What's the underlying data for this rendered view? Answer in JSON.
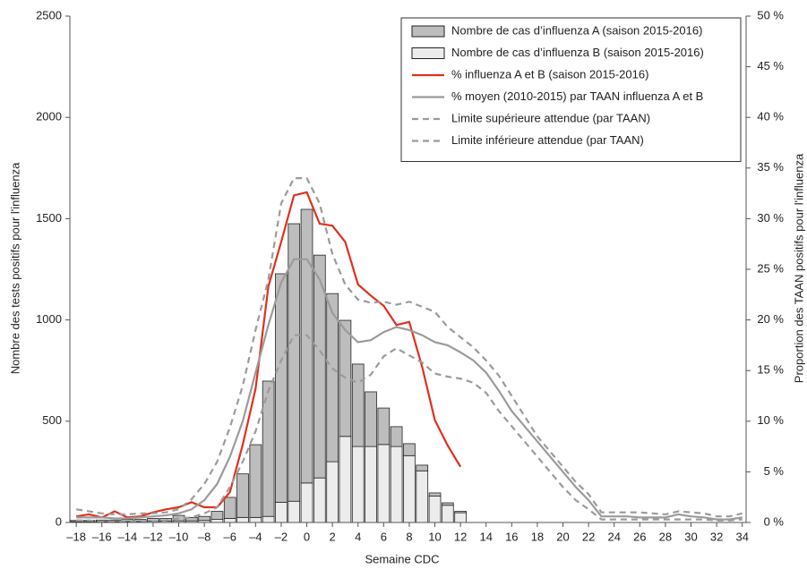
{
  "chart_data": {
    "type": "bar",
    "xlabel": "Semaine CDC",
    "ylabel": "Nombre  des tests positifs pour l'influenza",
    "y2label": "Proportion des TAAN positifs pour l'influenza",
    "x": [
      -18,
      -17,
      -16,
      -15,
      -14,
      -13,
      -12,
      -11,
      -10,
      -9,
      -8,
      -7,
      -6,
      -5,
      -4,
      -3,
      -2,
      -1,
      0,
      1,
      2,
      3,
      4,
      5,
      6,
      7,
      8,
      9,
      10,
      11,
      12,
      13,
      14,
      15,
      16,
      17,
      18,
      19,
      20,
      21,
      22,
      23,
      24,
      25,
      26,
      27,
      28,
      29,
      30,
      31,
      32,
      33,
      34
    ],
    "xlim": [
      -18.5,
      34.3
    ],
    "xticks": [
      {
        "value": -18,
        "label": "–18"
      },
      {
        "value": -16,
        "label": "–16"
      },
      {
        "value": -14,
        "label": "–14"
      },
      {
        "value": -12,
        "label": "–12"
      },
      {
        "value": -10,
        "label": "–10"
      },
      {
        "value": -8,
        "label": "–8"
      },
      {
        "value": -6,
        "label": "–6"
      },
      {
        "value": -4,
        "label": "–4"
      },
      {
        "value": -2,
        "label": "–2"
      },
      0,
      2,
      4,
      6,
      8,
      10,
      12,
      14,
      16,
      18,
      20,
      22,
      24,
      26,
      28,
      30,
      32,
      34
    ],
    "ylim": [
      0,
      2500
    ],
    "yticks": [
      0,
      500,
      1000,
      1500,
      2000,
      2500
    ],
    "y2lim": [
      0,
      50
    ],
    "y2ticks": [
      {
        "value": 0,
        "label": "0 %"
      },
      {
        "value": 5,
        "label": "5 %"
      },
      {
        "value": 10,
        "label": "10 %"
      },
      {
        "value": 15,
        "label": "15 %"
      },
      {
        "value": 20,
        "label": "20 %"
      },
      {
        "value": 25,
        "label": "25 %"
      },
      {
        "value": 30,
        "label": "30 %"
      },
      {
        "value": 35,
        "label": "35 %"
      },
      {
        "value": 40,
        "label": "40 %"
      },
      {
        "value": 45,
        "label": "45 %"
      },
      {
        "value": 50,
        "label": "50 %"
      }
    ],
    "legend": "top-right",
    "series": [
      {
        "name": "Nombre de cas d’influenza A (saison 2015-2016)",
        "type": "bar",
        "color": "#bdbdbd",
        "values": [
          6,
          6,
          8,
          8,
          10,
          10,
          14,
          14,
          27,
          17,
          20,
          40,
          104,
          215,
          359,
          668,
          1128,
          1370,
          1351,
          1100,
          830,
          573,
          407,
          270,
          180,
          98,
          59,
          28,
          16,
          12,
          7,
          null,
          null,
          null,
          null,
          null,
          null,
          null,
          null,
          null,
          null,
          null,
          null,
          null,
          null,
          null,
          null,
          null,
          null,
          null,
          null,
          null,
          null
        ]
      },
      {
        "name": "Nombre de cas d’influenza B (saison 2015-2016)",
        "type": "bar",
        "color": "#ececec",
        "values": [
          4,
          4,
          4,
          4,
          5,
          5,
          6,
          6,
          8,
          8,
          10,
          15,
          20,
          25,
          25,
          30,
          100,
          105,
          195,
          220,
          300,
          425,
          375,
          375,
          385,
          375,
          330,
          255,
          130,
          85,
          48,
          null,
          null,
          null,
          null,
          null,
          null,
          null,
          null,
          null,
          null,
          null,
          null,
          null,
          null,
          null,
          null,
          null,
          null,
          null,
          null,
          null,
          null
        ]
      },
      {
        "name": "% influenza A et B (saison 2015-2016)",
        "type": "line",
        "axis": "y2",
        "color": "#e0301e",
        "dashed": false,
        "values": [
          0.6,
          0.8,
          0.5,
          1.1,
          0.5,
          0.6,
          1.0,
          1.3,
          1.5,
          2.0,
          1.5,
          1.5,
          3.0,
          7.7,
          13.2,
          23.3,
          27.7,
          32.3,
          32.6,
          29.5,
          29.3,
          27.7,
          23.5,
          22.4,
          21.4,
          19.5,
          19.8,
          15.4,
          10.1,
          7.6,
          5.5,
          null,
          null,
          null,
          null,
          null,
          null,
          null,
          null,
          null,
          null,
          null,
          null,
          null,
          null,
          null,
          null,
          null,
          null,
          null,
          null,
          null,
          null
        ]
      },
      {
        "name": "% moyen (2010-2015) par TAAN influenza A et B",
        "type": "line",
        "axis": "y2",
        "color": "#9b9b9b",
        "dashed": false,
        "values": [
          0.5,
          0.5,
          0.5,
          0.4,
          0.4,
          0.5,
          0.6,
          0.7,
          0.9,
          1.3,
          2.2,
          3.8,
          6.5,
          10,
          14.8,
          19.5,
          23.7,
          26,
          26,
          24,
          20.7,
          19,
          17.8,
          18,
          18.8,
          19.3,
          19,
          18.5,
          17.8,
          17.5,
          16.8,
          16,
          14.8,
          13,
          11,
          9.5,
          8,
          6.5,
          5,
          3.5,
          2.2,
          0.6,
          0.6,
          0.6,
          0.5,
          0.5,
          0.5,
          0.8,
          0.6,
          0.5,
          0.3,
          0.3,
          0.5
        ]
      },
      {
        "name": "Limite supérieure attendue (par TAAN)",
        "type": "line",
        "axis": "y2",
        "color": "#9b9b9b",
        "dashed": true,
        "values": [
          1.3,
          1.1,
          0.9,
          0.8,
          0.8,
          0.9,
          0.9,
          1.0,
          1.3,
          2.3,
          3.8,
          6,
          9.4,
          13.5,
          19,
          24,
          31.5,
          34,
          34,
          31.5,
          26.5,
          23.5,
          22,
          21.7,
          21.8,
          21.5,
          21.8,
          21.3,
          20.8,
          19.3,
          18.3,
          17.3,
          16,
          14.5,
          12.5,
          10.5,
          8.5,
          7,
          5.5,
          4,
          2.8,
          1.0,
          1.0,
          1.0,
          1.0,
          0.9,
          0.8,
          1.1,
          1.0,
          0.9,
          0.6,
          0.6,
          0.9
        ]
      },
      {
        "name": "Limite inférieure attendue (par TAAN)",
        "type": "line",
        "axis": "y2",
        "color": "#9b9b9b",
        "dashed": true,
        "values": [
          0.2,
          0.2,
          0.1,
          0.1,
          0.1,
          0.1,
          0.1,
          0.2,
          0.4,
          0.5,
          0.9,
          1.5,
          3.5,
          6,
          9,
          13,
          16,
          18.5,
          18.5,
          17,
          15.2,
          14.3,
          13.8,
          14.6,
          16.4,
          17.2,
          16.5,
          15.8,
          14.7,
          14.4,
          14.2,
          13.8,
          12.8,
          11,
          9.5,
          8,
          6.5,
          5,
          3.5,
          2.2,
          1.3,
          0.3,
          0.3,
          0.3,
          0.3,
          0.3,
          0.3,
          0.3,
          0.3,
          0.3,
          0.2,
          0.2,
          0.3
        ]
      }
    ]
  }
}
